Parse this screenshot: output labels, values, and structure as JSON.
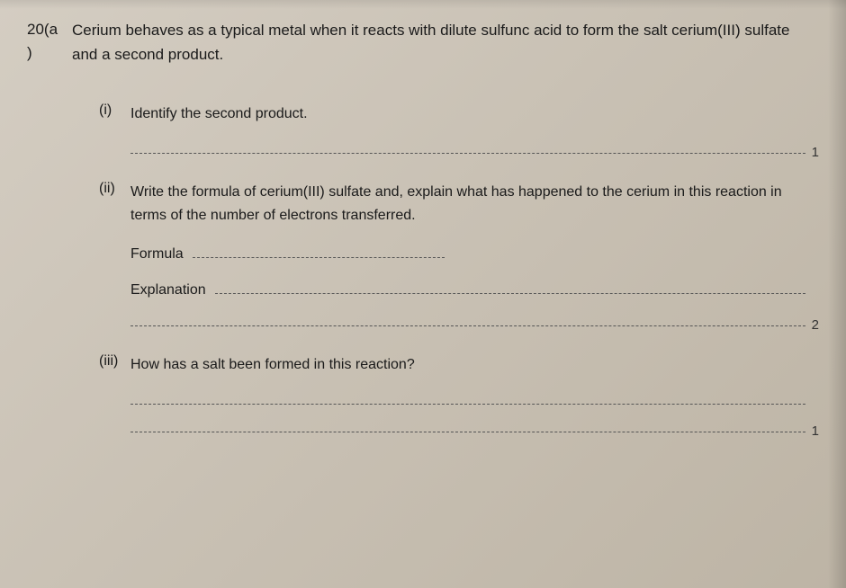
{
  "question": {
    "number": "20(a",
    "numberParen": ")",
    "text": "Cerium behaves as a typical metal when it reacts with dilute sulfunc acid to form the salt cerium(III) sulfate and a second product."
  },
  "parts": {
    "i": {
      "label": "(i)",
      "text": "Identify the second product.",
      "mark": "1"
    },
    "ii": {
      "label": "(ii)",
      "text": "Write the formula of cerium(III) sulfate and, explain what has happened to the cerium in this reaction in terms of the number of electrons transferred.",
      "formulaLabel": "Formula",
      "explanationLabel": "Explanation",
      "mark": "2"
    },
    "iii": {
      "label": "(iii)",
      "text": "How has a salt been formed in this reaction?",
      "mark": "1"
    }
  }
}
